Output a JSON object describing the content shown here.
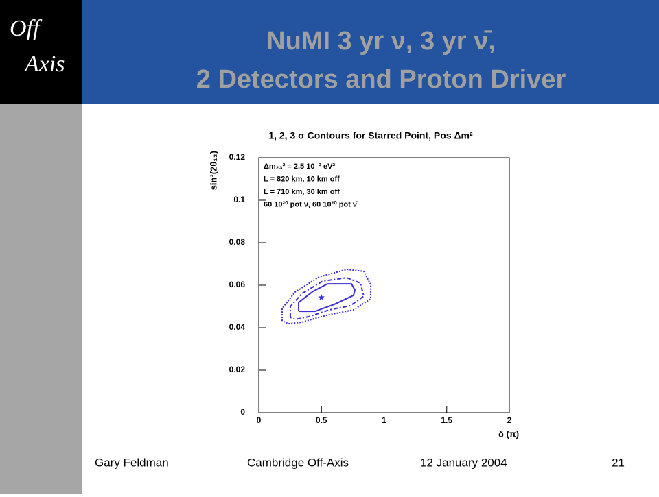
{
  "slide": {
    "logo": [
      "Off",
      "Axis"
    ],
    "title": [
      "NuMI 3 yr ν, 3 yr ν̄,",
      "2 Detectors and Proton Driver"
    ],
    "footer": {
      "author": "Gary Feldman",
      "event": "Cambridge Off-Axis",
      "date": "12 January 2004",
      "page": "21"
    }
  },
  "chart_data": {
    "type": "contour",
    "title": "1, 2, 3 σ Contours for Starred Point, Pos Δm²",
    "x_label": "δ (π)",
    "y_label": "sin²(2θ₁₃)",
    "annotations": [
      "Δm₂₃² = 2.5 10⁻³ eV²",
      "L = 820 km, 10 km off",
      "L = 710 km, 30 km off",
      "60 10²⁰ pot ν, 60 10²⁰ pot ν̄"
    ],
    "xlim": [
      0,
      2
    ],
    "ylim": [
      0,
      0.12
    ],
    "xticks": [
      0,
      0.5,
      1,
      1.5,
      2
    ],
    "yticks": [
      0,
      0.02,
      0.04,
      0.06,
      0.08,
      0.1,
      0.12
    ],
    "point": {
      "x": 0.5,
      "y": 0.0542,
      "color": "#3a2fd0"
    },
    "series": [
      {
        "color": "#3a2fd0",
        "dash": "solid",
        "x": [
          0.318,
          0.318,
          0.433,
          0.548,
          0.74,
          0.767,
          0.756,
          0.603,
          0.449,
          0.318
        ],
        "y": [
          0.0477,
          0.0519,
          0.0571,
          0.0606,
          0.0606,
          0.0577,
          0.0552,
          0.051,
          0.0477,
          0.0477
        ]
      },
      {
        "color": "#3a2fd0",
        "dash": "dashdot",
        "x": [
          0.252,
          0.252,
          0.345,
          0.51,
          0.701,
          0.811,
          0.838,
          0.729,
          0.564,
          0.4,
          0.29,
          0.252
        ],
        "y": [
          0.0448,
          0.05,
          0.0561,
          0.0619,
          0.0635,
          0.061,
          0.0548,
          0.0503,
          0.0484,
          0.0452,
          0.0439,
          0.0448
        ]
      },
      {
        "color": "#3a2fd0",
        "dash": "dotted",
        "x": [
          0.186,
          0.186,
          0.29,
          0.482,
          0.701,
          0.838,
          0.893,
          0.893,
          0.756,
          0.537,
          0.345,
          0.236,
          0.186
        ],
        "y": [
          0.0432,
          0.049,
          0.0568,
          0.0639,
          0.0674,
          0.0665,
          0.0603,
          0.0535,
          0.0484,
          0.0458,
          0.0426,
          0.0419,
          0.0432
        ]
      }
    ]
  }
}
